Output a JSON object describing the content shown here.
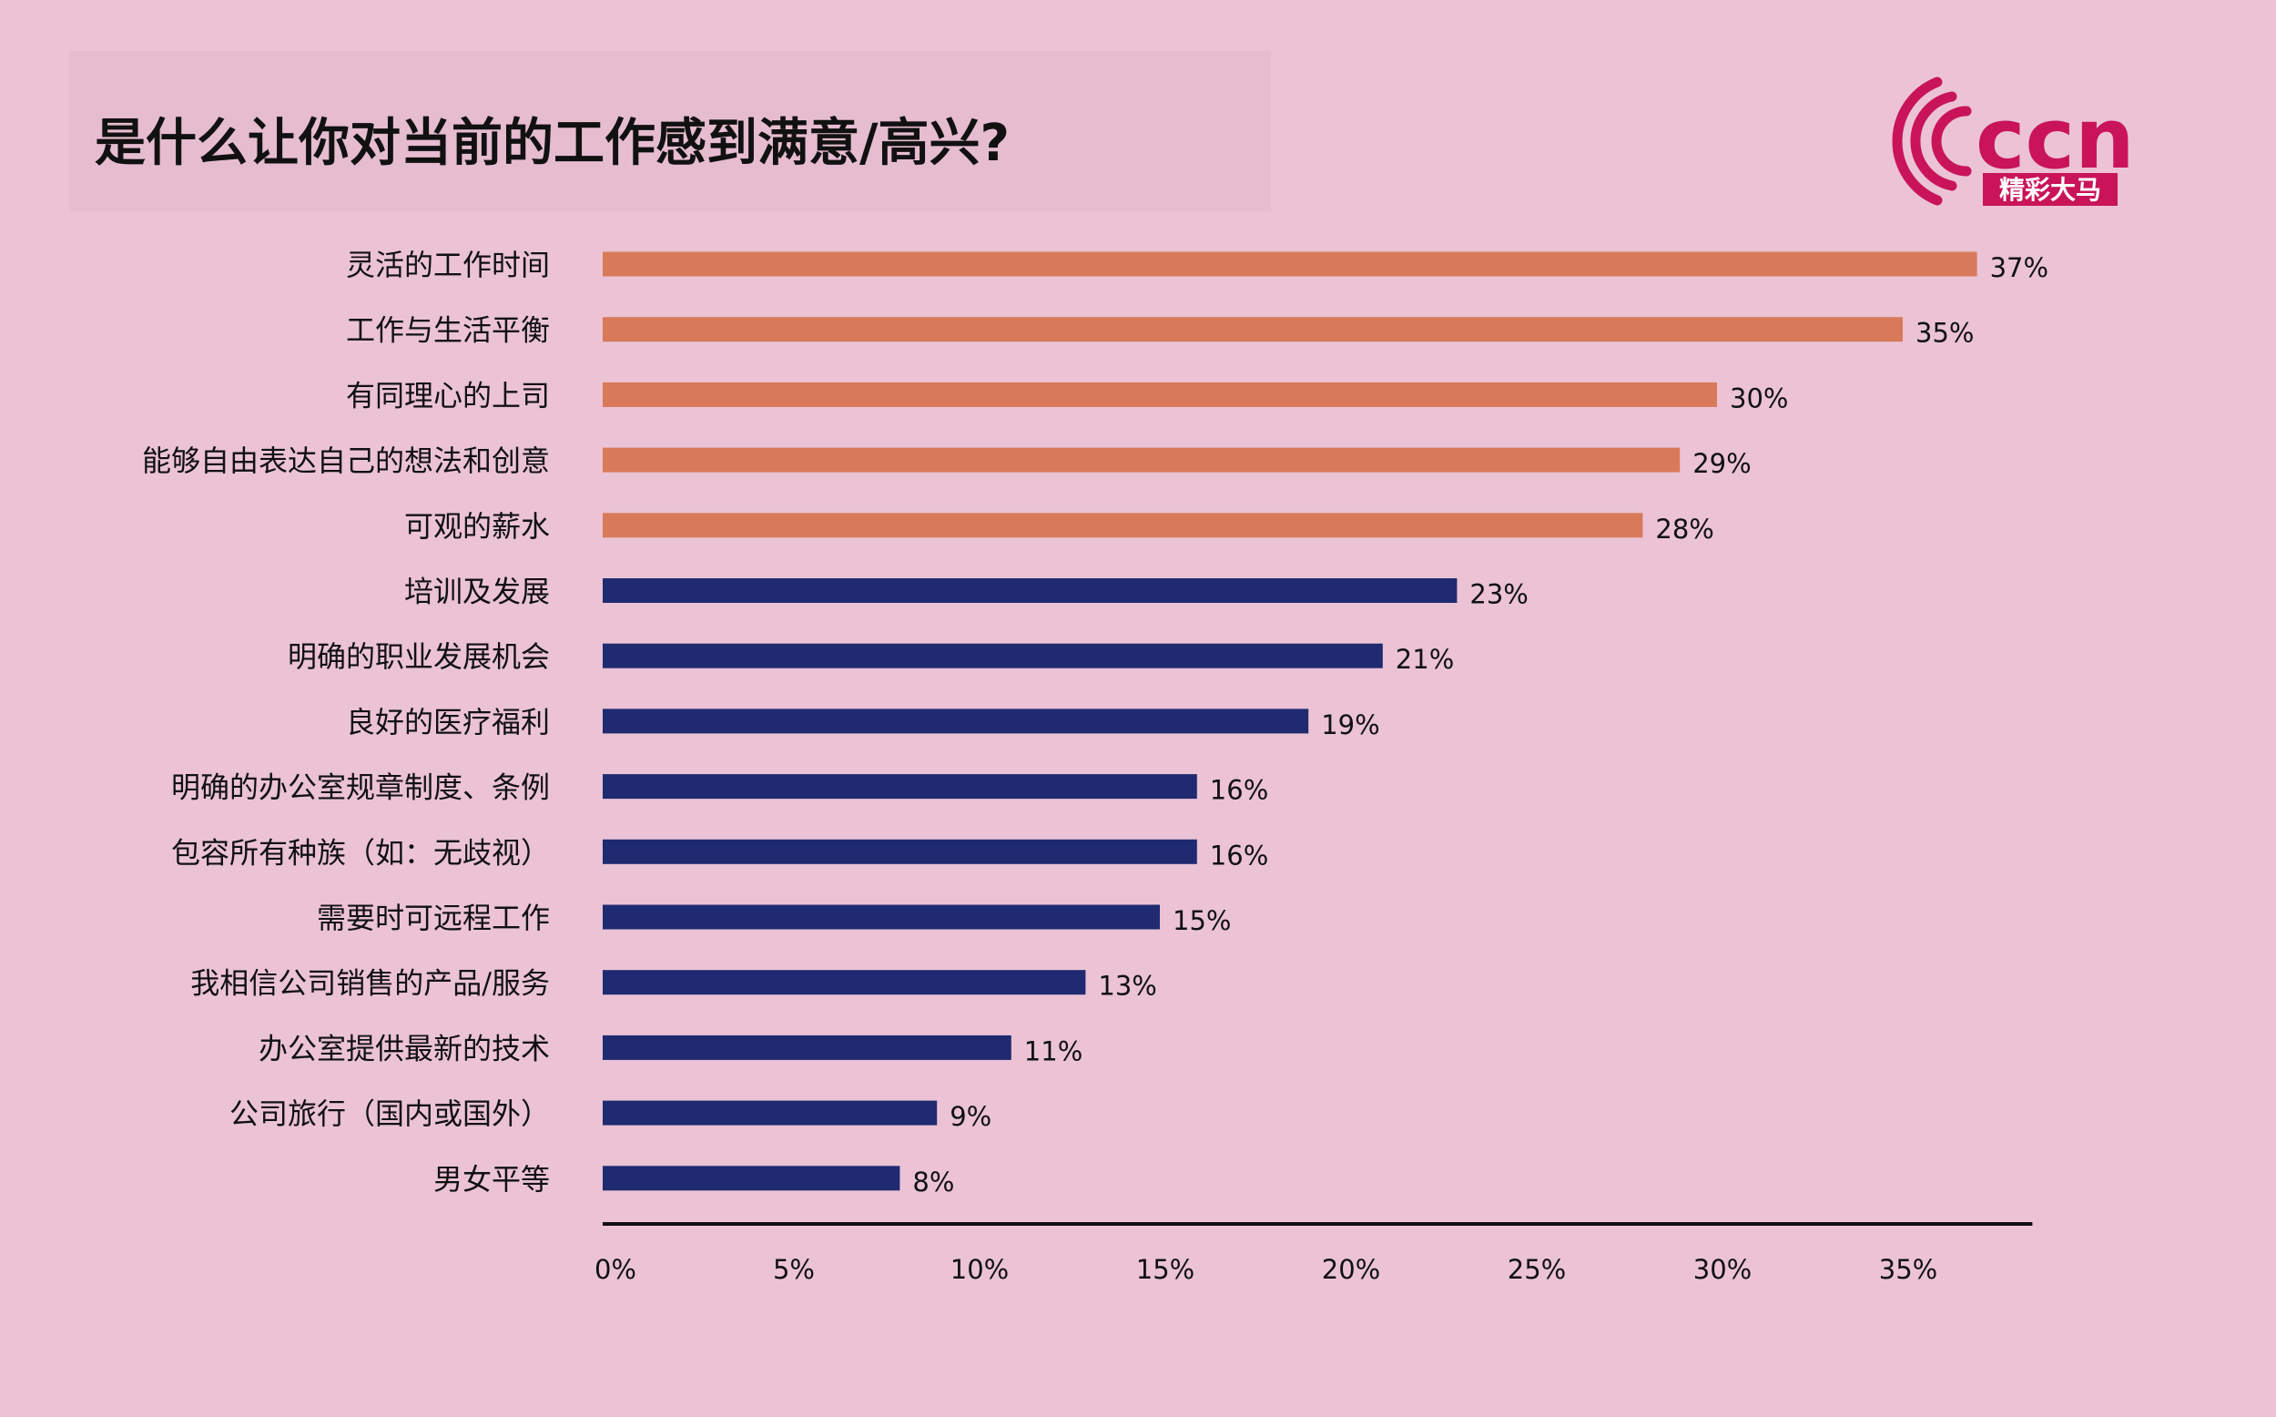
{
  "title": "是什么让你对当前的工作感到满意/高兴?",
  "logo": {
    "letters": "ccn",
    "tagline": "精彩大马"
  },
  "colors": {
    "highlight": "#d87a5a",
    "base": "#1f2a70",
    "logo": "#c9145a",
    "axis": "#111111"
  },
  "chart_data": {
    "type": "bar",
    "orientation": "horizontal",
    "categories": [
      "灵活的工作时间",
      "工作与生活平衡",
      "有同理心的上司",
      "能够自由表达自己的想法和创意",
      "可观的薪水",
      "培训及发展",
      "明确的职业发展机会",
      "良好的医疗福利",
      "明确的办公室规章制度、条例",
      "包容所有种族（如：无歧视）",
      "需要时可远程工作",
      "我相信公司销售的产品/服务",
      "办公室提供最新的技术",
      "公司旅行（国内或国外）",
      "男女平等"
    ],
    "values": [
      37,
      35,
      30,
      29,
      28,
      23,
      21,
      19,
      16,
      16,
      15,
      13,
      11,
      9,
      8
    ],
    "value_labels": [
      "37%",
      "35%",
      "30%",
      "29%",
      "28%",
      "23%",
      "21%",
      "19%",
      "16%",
      "16%",
      "15%",
      "13%",
      "11%",
      "9%",
      "8%"
    ],
    "highlighted_top": 5,
    "x_ticks": [
      0,
      5,
      10,
      15,
      20,
      25,
      30,
      35
    ],
    "x_tick_labels": [
      "0%",
      "5%",
      "10%",
      "15%",
      "20%",
      "25%",
      "30%",
      "35%"
    ],
    "xlim": [
      0,
      38
    ],
    "grid": false,
    "legend": "none"
  }
}
